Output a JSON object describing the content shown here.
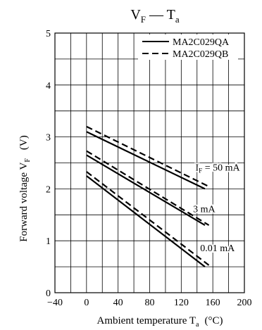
{
  "chart_data": {
    "type": "line",
    "title": {
      "main": "V",
      "main_sub": "F",
      "sep": " — ",
      "second": "T",
      "second_sub": "a"
    },
    "ylabel": {
      "main": "Forward voltage  V",
      "sub": "F",
      "unit": "(V)"
    },
    "xlabel": {
      "main": "Ambient temperature  T",
      "sub": "a",
      "unit": "(°C)"
    },
    "xlim": [
      -40,
      200
    ],
    "ylim": [
      0,
      5
    ],
    "xticks": [
      "−40",
      "0",
      "40",
      "80",
      "120",
      "160",
      "200"
    ],
    "xtick_values": [
      -40,
      0,
      40,
      80,
      120,
      160,
      200
    ],
    "yticks": [
      "0",
      "1",
      "2",
      "3",
      "4",
      "5"
    ],
    "ytick_values": [
      0,
      1,
      2,
      3,
      4,
      5
    ],
    "grid": true,
    "legend_position": "top-right",
    "legend": [
      {
        "label": "MA2C029QA",
        "style": "solid"
      },
      {
        "label": "MA2C029QB",
        "style": "dashed"
      }
    ],
    "series": [
      {
        "group": "IF = 50 mA",
        "style": "solid",
        "x": [
          0,
          150
        ],
        "y": [
          3.1,
          2.0
        ]
      },
      {
        "group": "IF = 50 mA",
        "style": "dashed",
        "x": [
          0,
          157
        ],
        "y": [
          3.2,
          2.03
        ]
      },
      {
        "group": "3 mA",
        "style": "solid",
        "x": [
          0,
          150
        ],
        "y": [
          2.65,
          1.3
        ]
      },
      {
        "group": "3 mA",
        "style": "dashed",
        "x": [
          0,
          155
        ],
        "y": [
          2.73,
          1.3
        ]
      },
      {
        "group": "0.01 mA",
        "style": "solid",
        "x": [
          0,
          150
        ],
        "y": [
          2.25,
          0.5
        ]
      },
      {
        "group": "0.01 mA",
        "style": "dashed",
        "x": [
          0,
          155
        ],
        "y": [
          2.33,
          0.53
        ]
      }
    ],
    "annotations": [
      {
        "main": "I",
        "sub": "F",
        "rest": " = 50 mA",
        "x": 138,
        "y": 2.35
      },
      {
        "main": "3 mA",
        "sub": "",
        "rest": "",
        "x": 135,
        "y": 1.55
      },
      {
        "main": "0.01 mA",
        "sub": "",
        "rest": "",
        "x": 144,
        "y": 0.8
      }
    ],
    "colors": {
      "line": "#000000",
      "grid": "#000000",
      "background": "#ffffff"
    }
  }
}
